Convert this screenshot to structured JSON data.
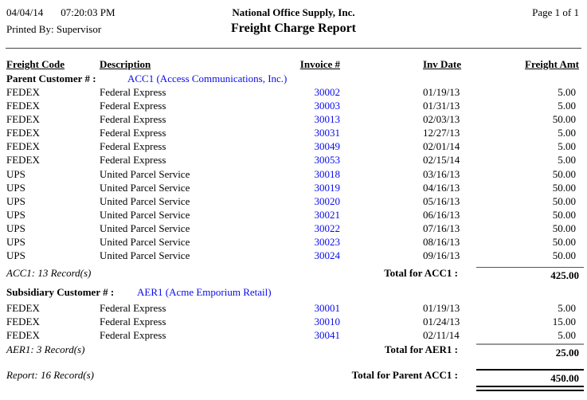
{
  "colors": {
    "link": "#0b0bee"
  },
  "header": {
    "date": "04/04/14",
    "time": "07:20:03 PM",
    "company": "National Office Supply, Inc.",
    "page": "Page 1 of  1",
    "printed_by": "Printed By: Supervisor",
    "title": "Freight Charge Report"
  },
  "columns": {
    "freight_code": "Freight Code",
    "description": "Description",
    "invoice": "Invoice #",
    "inv_date": "Inv Date",
    "freight_amt": "Freight Amt"
  },
  "sections": [
    {
      "group_label": "Parent Customer # :",
      "group_value": "ACC1 (Access Communications, Inc.)",
      "rows": [
        {
          "code": "FEDEX",
          "desc": "Federal Express",
          "invoice": "30002",
          "date": "01/19/13",
          "amt": "5.00"
        },
        {
          "code": "FEDEX",
          "desc": "Federal Express",
          "invoice": "30003",
          "date": "01/31/13",
          "amt": "5.00"
        },
        {
          "code": "FEDEX",
          "desc": "Federal Express",
          "invoice": "30013",
          "date": "02/03/13",
          "amt": "50.00"
        },
        {
          "code": "FEDEX",
          "desc": "Federal Express",
          "invoice": "30031",
          "date": "12/27/13",
          "amt": "5.00"
        },
        {
          "code": "FEDEX",
          "desc": "Federal Express",
          "invoice": "30049",
          "date": "02/01/14",
          "amt": "5.00"
        },
        {
          "code": "FEDEX",
          "desc": "Federal Express",
          "invoice": "30053",
          "date": "02/15/14",
          "amt": "5.00"
        },
        {
          "code": "UPS",
          "desc": "United Parcel Service",
          "invoice": "30018",
          "date": "03/16/13",
          "amt": "50.00"
        },
        {
          "code": "UPS",
          "desc": "United Parcel Service",
          "invoice": "30019",
          "date": "04/16/13",
          "amt": "50.00"
        },
        {
          "code": "UPS",
          "desc": "United Parcel Service",
          "invoice": "30020",
          "date": "05/16/13",
          "amt": "50.00"
        },
        {
          "code": "UPS",
          "desc": "United Parcel Service",
          "invoice": "30021",
          "date": "06/16/13",
          "amt": "50.00"
        },
        {
          "code": "UPS",
          "desc": "United Parcel Service",
          "invoice": "30022",
          "date": "07/16/13",
          "amt": "50.00"
        },
        {
          "code": "UPS",
          "desc": "United Parcel Service",
          "invoice": "30023",
          "date": "08/16/13",
          "amt": "50.00"
        },
        {
          "code": "UPS",
          "desc": "United Parcel Service",
          "invoice": "30024",
          "date": "09/16/13",
          "amt": "50.00"
        }
      ],
      "record_note": "ACC1: 13 Record(s)",
      "total_label": "Total for ACC1 :",
      "total_value": "425.00"
    },
    {
      "group_label": "Subsidiary Customer # :",
      "group_value": "AER1 (Acme Emporium Retail)",
      "rows": [
        {
          "code": "FEDEX",
          "desc": "Federal Express",
          "invoice": "30001",
          "date": "01/19/13",
          "amt": "5.00"
        },
        {
          "code": "FEDEX",
          "desc": "Federal Express",
          "invoice": "30010",
          "date": "01/24/13",
          "amt": "15.00"
        },
        {
          "code": "FEDEX",
          "desc": "Federal Express",
          "invoice": "30041",
          "date": "02/11/14",
          "amt": "5.00"
        }
      ],
      "record_note": "AER1: 3 Record(s)",
      "total_label": "Total for AER1 :",
      "total_value": "25.00"
    }
  ],
  "grand_total": {
    "record_note": "Report: 16 Record(s)",
    "label": "Total for Parent ACC1 :",
    "value": "450.00"
  }
}
